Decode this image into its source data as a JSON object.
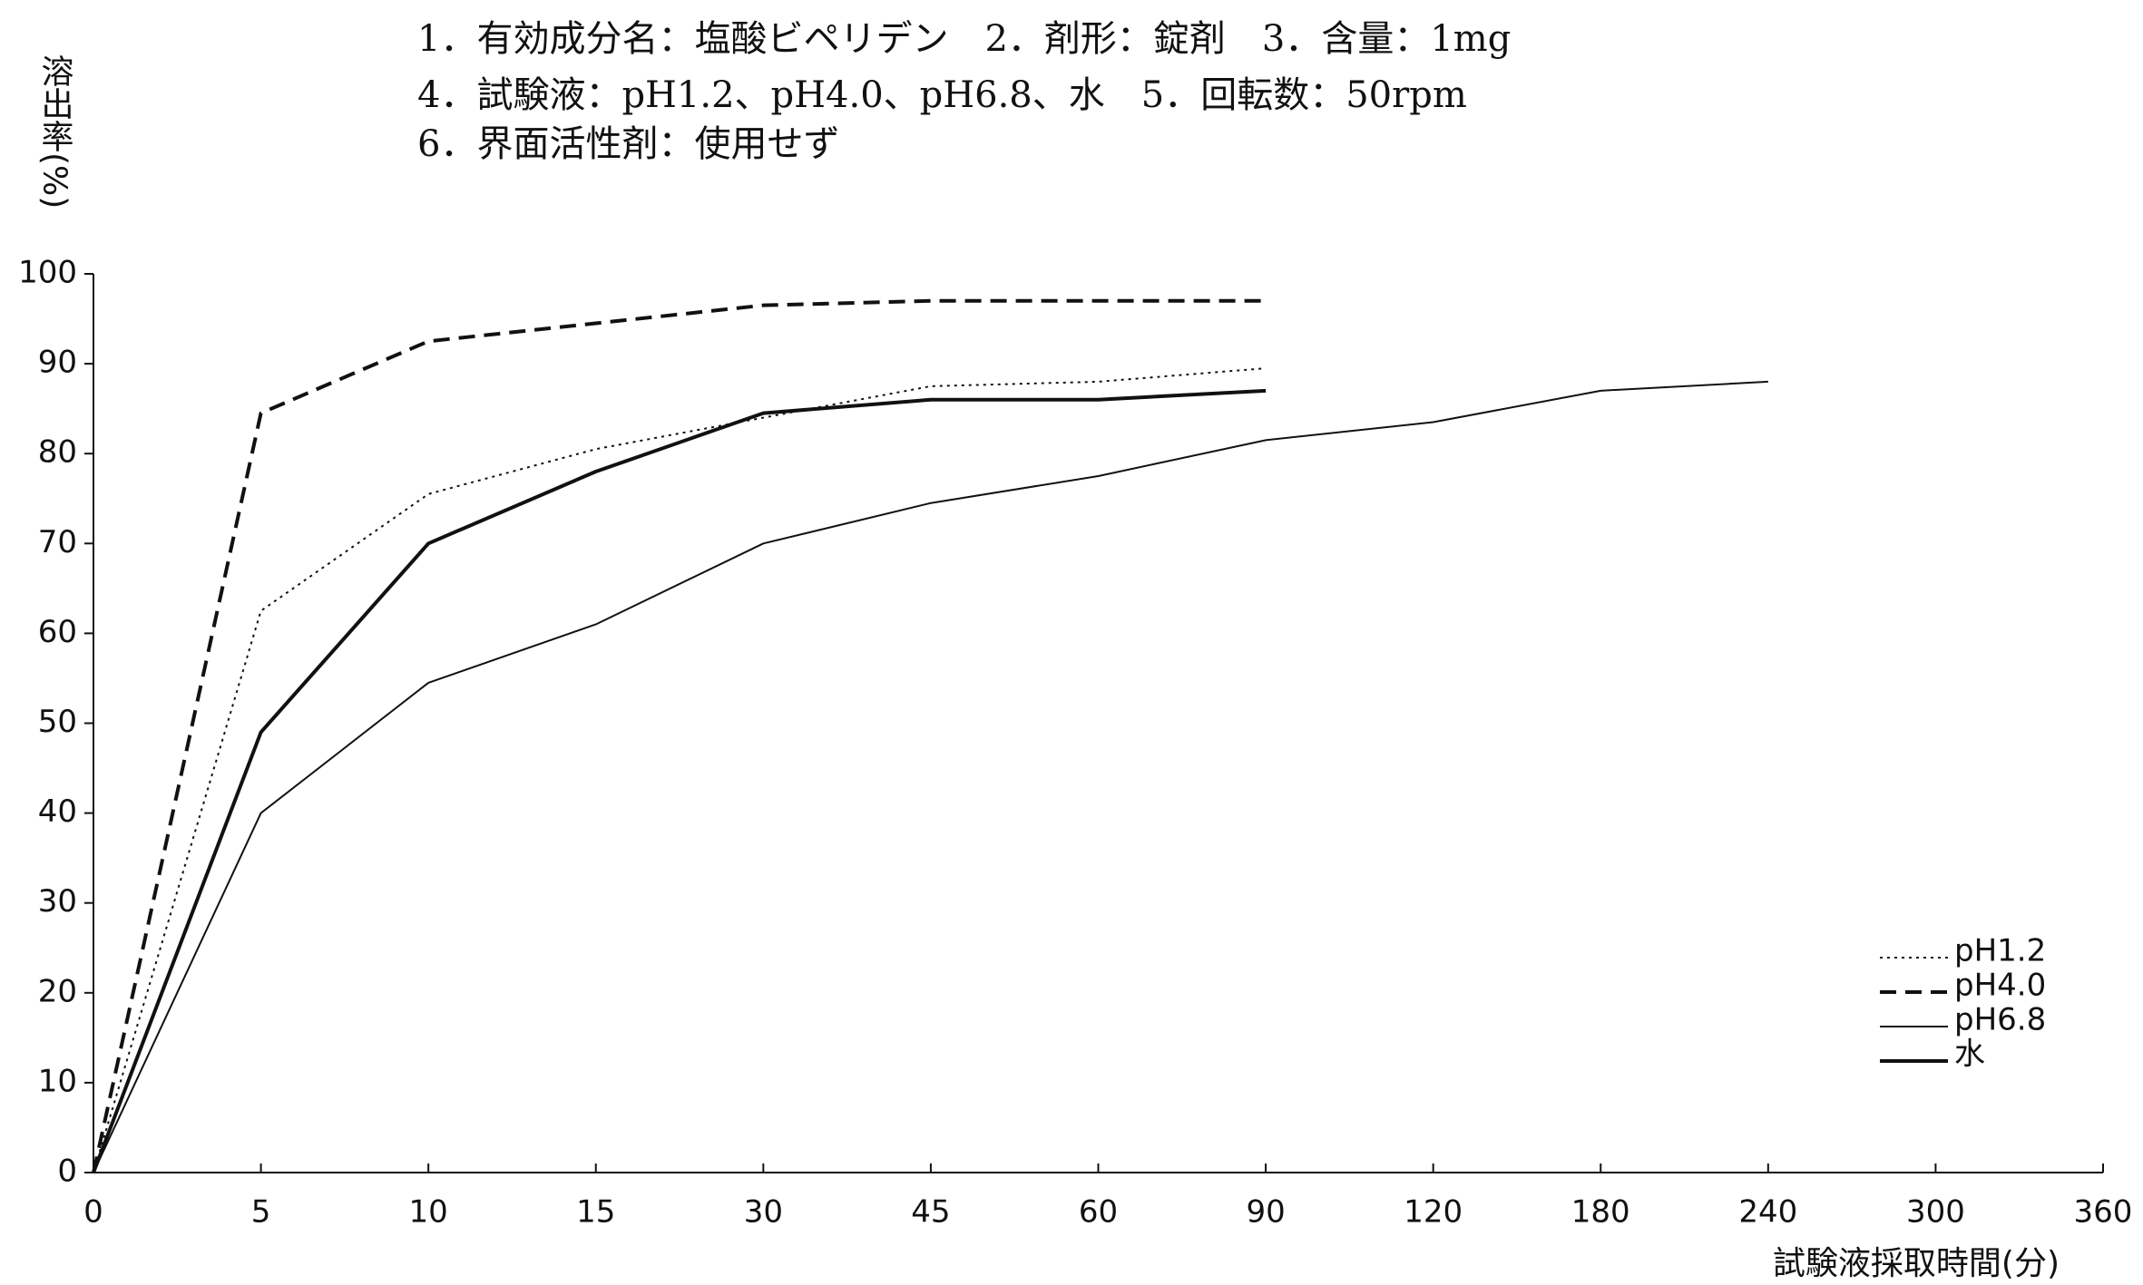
{
  "chart_data": {
    "type": "line",
    "title_lines": [
      "1．有効成分名：塩酸ビペリデン　2．剤形：錠剤　3．含量：1mg",
      "4．試験液：pH1.2、pH4.0、pH6.8、水　5．回転数：50rpm",
      "6．界面活性剤：使用せず"
    ],
    "y_label": "溶出率(%)",
    "x_label": "試験液採取時間(分)",
    "categories": [
      "0",
      "5",
      "10",
      "15",
      "30",
      "45",
      "60",
      "90",
      "120",
      "180",
      "240",
      "300",
      "360"
    ],
    "series": [
      {
        "name": "pH1.2",
        "color": "#111111",
        "style": "dotted",
        "values": [
          0,
          62.5,
          75.5,
          80.5,
          84,
          87.5,
          88,
          89.5,
          null,
          null,
          null,
          null,
          null
        ]
      },
      {
        "name": "pH4.0",
        "color": "#111111",
        "style": "dashed",
        "values": [
          0,
          84.5,
          92.5,
          94.5,
          96.5,
          97,
          97,
          97,
          null,
          null,
          null,
          null,
          null
        ]
      },
      {
        "name": "pH6.8",
        "color": "#111111",
        "style": "solid",
        "values": [
          0,
          40,
          54.5,
          61,
          70,
          74.5,
          77.5,
          81.5,
          83.5,
          87,
          88,
          null,
          null
        ]
      },
      {
        "name": "水",
        "color": "#111111",
        "style": "bold",
        "values": [
          0,
          49,
          70,
          78,
          84.5,
          86,
          86,
          87,
          null,
          null,
          null,
          null,
          null
        ]
      }
    ],
    "ylim": [
      0,
      100
    ],
    "yticks": [
      0,
      10,
      20,
      30,
      40,
      50,
      60,
      70,
      80,
      90,
      100
    ],
    "grid": false,
    "legend": "lower right"
  }
}
